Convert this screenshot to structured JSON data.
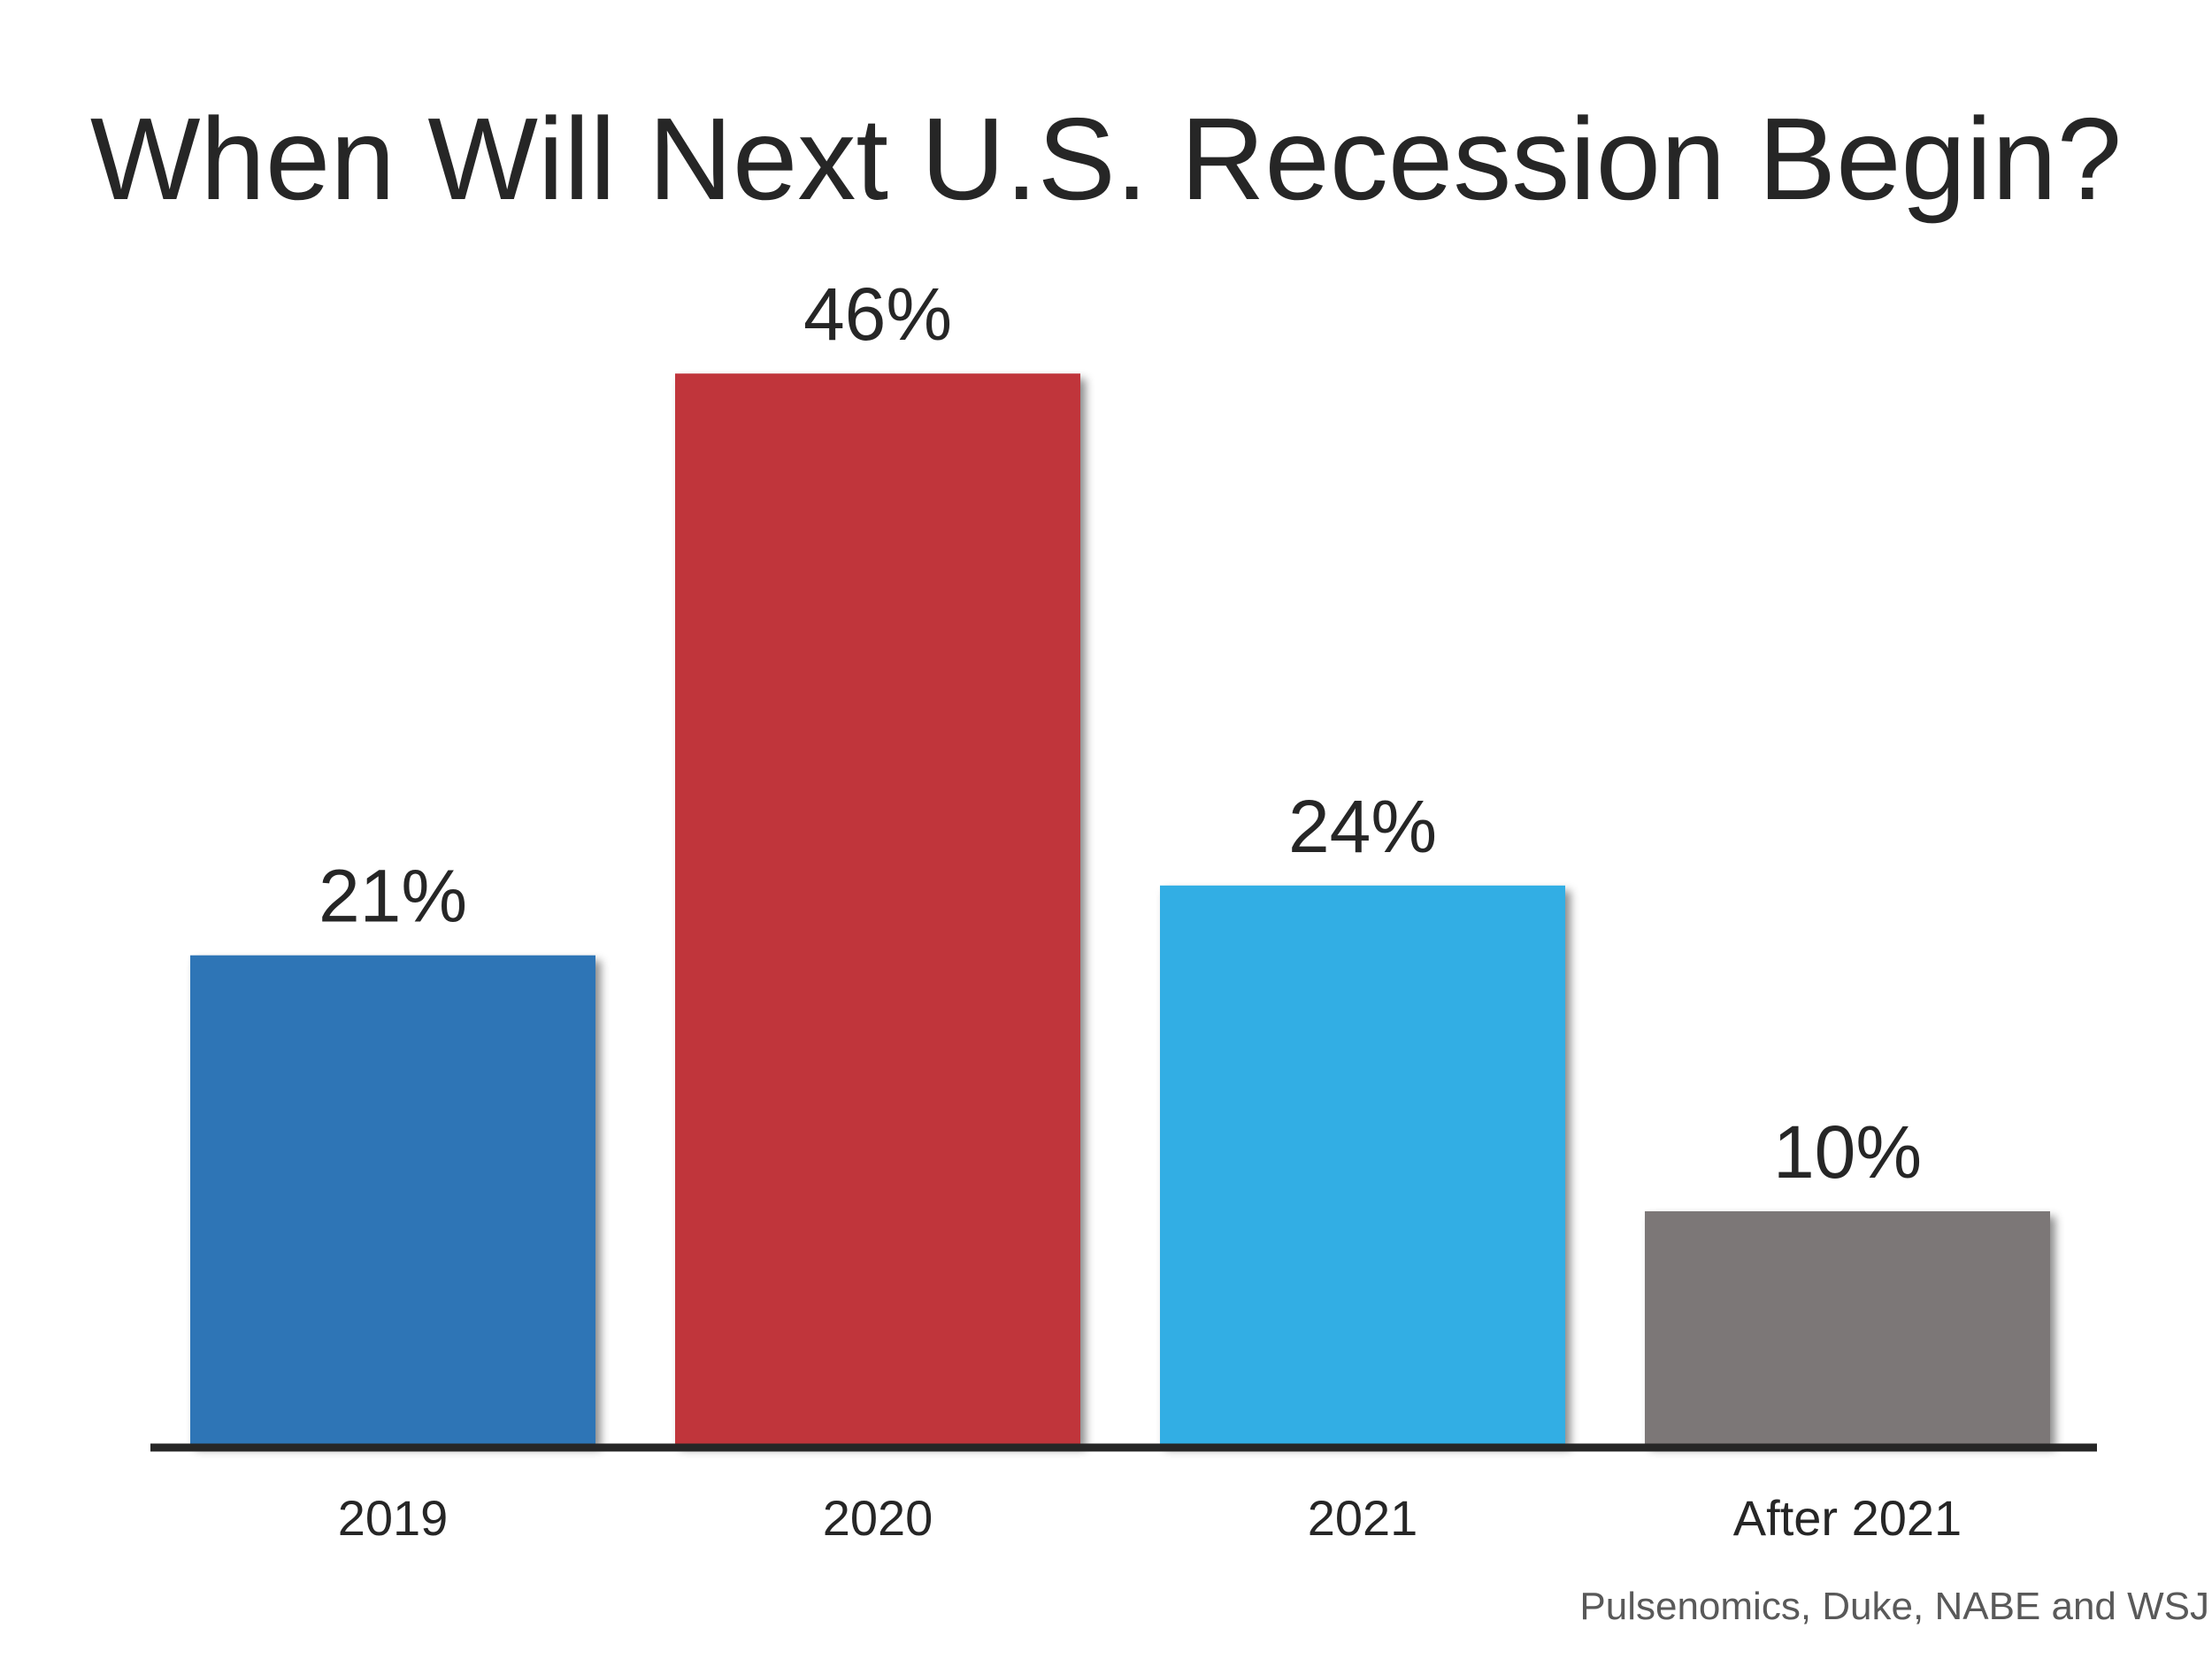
{
  "chart_data": {
    "type": "bar",
    "title": "When Will Next U.S. Recession Begin?",
    "categories": [
      "2019",
      "2020",
      "2021",
      "After 2021"
    ],
    "values": [
      21,
      46,
      24,
      10
    ],
    "value_labels": [
      "21%",
      "46%",
      "24%",
      "10%"
    ],
    "unit": "%",
    "colors": [
      "#2e75b6",
      "#c0353a",
      "#33aee4",
      "#7b7777"
    ],
    "xlabel": "",
    "ylabel": "",
    "ylim": [
      0,
      50
    ],
    "grid": false,
    "legend": "none",
    "source": "Pulsenomics, Duke, NABE and WSJ"
  }
}
